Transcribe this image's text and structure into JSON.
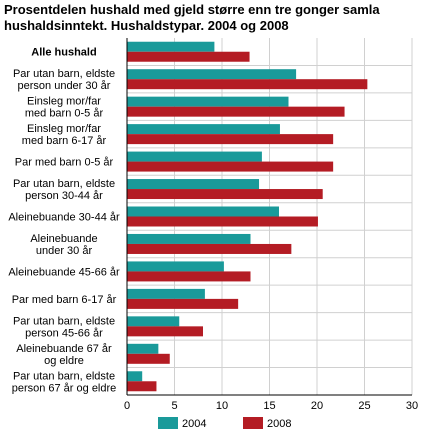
{
  "chart_data": {
    "type": "bar",
    "orientation": "horizontal",
    "title_lines": [
      "Prosentdelen hushald med gjeld større enn tre gonger samla",
      "hushaldsinntekt. Hushaldstypar. 2004 og 2008"
    ],
    "categories": [
      {
        "lines": [
          "Alle hushald"
        ],
        "bold": true
      },
      {
        "lines": [
          "Par utan barn, eldste",
          "person under 30 år"
        ]
      },
      {
        "lines": [
          "Einsleg mor/far",
          "med barn 0-5 år"
        ]
      },
      {
        "lines": [
          "Einsleg mor/far",
          "med barn 6-17 år"
        ]
      },
      {
        "lines": [
          "Par med barn 0-5 år"
        ]
      },
      {
        "lines": [
          "Par utan barn, eldste",
          "person 30-44 år"
        ]
      },
      {
        "lines": [
          "Aleinebuande 30-44 år"
        ]
      },
      {
        "lines": [
          "Aleinebuande",
          "under 30 år"
        ]
      },
      {
        "lines": [
          "Aleinebuande 45-66 år"
        ]
      },
      {
        "lines": [
          "Par med barn 6-17 år"
        ]
      },
      {
        "lines": [
          "Par utan barn, eldste",
          "person 45-66 år"
        ]
      },
      {
        "lines": [
          "Aleinebuande 67 år",
          "og eldre"
        ]
      },
      {
        "lines": [
          "Par utan barn, eldste",
          "person 67 år og eldre"
        ]
      }
    ],
    "series": [
      {
        "name": "2004",
        "color": "#1a9a9a",
        "values": [
          9.2,
          17.8,
          17.0,
          16.1,
          14.2,
          13.9,
          16.0,
          13.0,
          10.2,
          8.2,
          5.5,
          3.3,
          1.6
        ]
      },
      {
        "name": "2008",
        "color": "#b41c24",
        "values": [
          12.9,
          25.3,
          22.9,
          21.7,
          21.7,
          20.6,
          20.1,
          17.3,
          13.0,
          11.7,
          8.0,
          4.5,
          3.1
        ]
      }
    ],
    "xlim": [
      0,
      30
    ],
    "xticks": [
      0,
      5,
      10,
      15,
      20,
      25,
      30
    ],
    "grid": true,
    "legend": "bottom"
  }
}
